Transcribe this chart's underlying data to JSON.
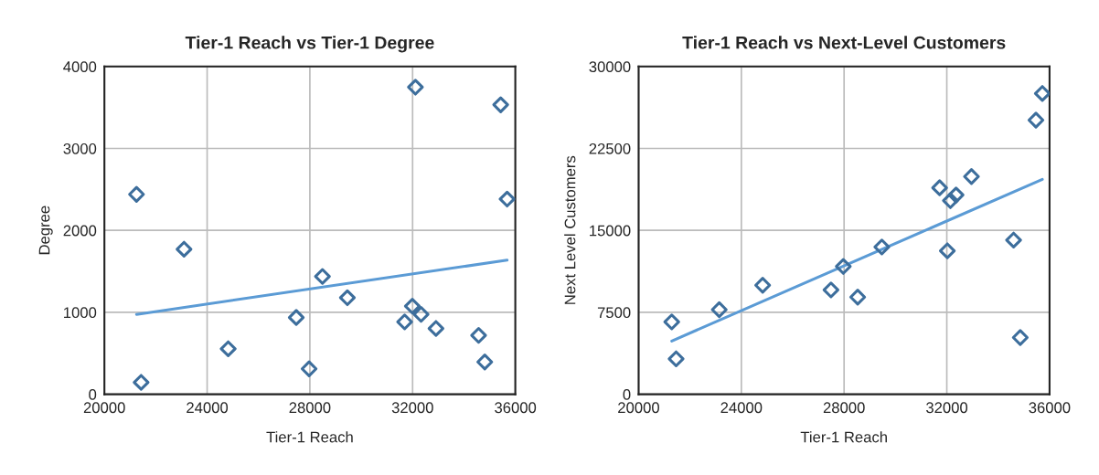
{
  "chart_data": [
    {
      "type": "scatter",
      "title": "Tier-1 Reach vs Tier-1 Degree",
      "xlabel": "Tier-1 Reach",
      "ylabel": "Degree",
      "xlim": [
        20000,
        36000
      ],
      "xticks": [
        20000,
        24000,
        28000,
        32000,
        36000
      ],
      "ylim": [
        0,
        4000
      ],
      "yticks": [
        0,
        1000,
        2000,
        3000,
        4000
      ],
      "grid": true,
      "marker": "diamond",
      "series": [
        {
          "color": "#3d6e9c",
          "x": [
            21250,
            21430,
            23100,
            24820,
            27470,
            27970,
            28490,
            29460,
            31690,
            31990,
            32330,
            32110,
            32910,
            34570,
            34810,
            35430,
            35680
          ],
          "values": [
            2440,
            145,
            1770,
            555,
            937,
            310,
            1438,
            1178,
            883,
            1075,
            975,
            3748,
            803,
            719,
            394,
            3533,
            2382
          ]
        },
        {
          "type": "line",
          "color": "#5b9bd5",
          "marker": "none",
          "x": [
            21250,
            35680
          ],
          "values": [
            975,
            1637
          ]
        }
      ]
    },
    {
      "type": "scatter",
      "title": "Tier-1 Reach vs Next-Level Customers",
      "xlabel": "Tier-1 Reach",
      "ylabel": "Next Level Customers",
      "xlim": [
        20000,
        36000
      ],
      "xticks": [
        20000,
        24000,
        28000,
        32000,
        36000
      ],
      "ylim": [
        0,
        30000
      ],
      "yticks": [
        0,
        7500,
        15000,
        22500,
        30000
      ],
      "grid": true,
      "marker": "diamond",
      "series": [
        {
          "color": "#3d6e9c",
          "x": [
            21290,
            21460,
            23140,
            24830,
            27490,
            27970,
            28530,
            29470,
            31720,
            32140,
            32360,
            32960,
            32020,
            34600,
            34860,
            35470,
            35720
          ],
          "values": [
            6625,
            3240,
            7743,
            9980,
            9550,
            11700,
            8890,
            13480,
            18900,
            17720,
            18240,
            19930,
            13130,
            14110,
            5190,
            25090,
            27530
          ]
        },
        {
          "type": "line",
          "color": "#5b9bd5",
          "marker": "none",
          "x": [
            21290,
            35720
          ],
          "values": [
            4875,
            19670
          ]
        }
      ]
    }
  ]
}
